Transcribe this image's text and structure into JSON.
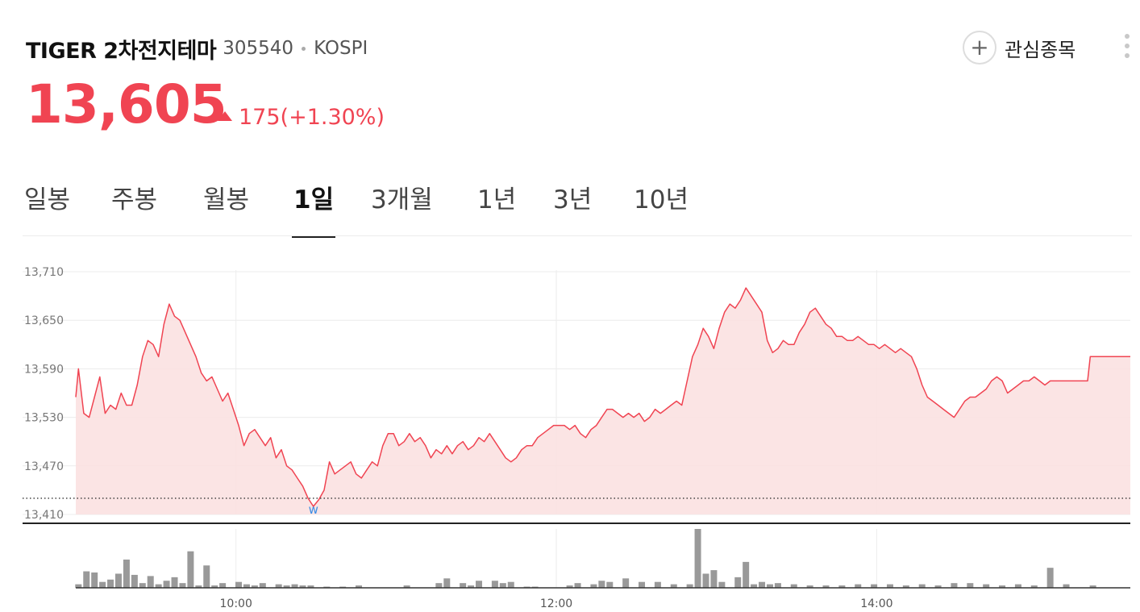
{
  "stock": {
    "name": "TIGER 2차전지테마",
    "code": "305540",
    "market": "KOSPI",
    "price": "13,605",
    "change": "175(+1.30%)",
    "fav_label": "관심종목",
    "fav_symbol": "+"
  },
  "tabs": [
    {
      "label": "일봉"
    },
    {
      "label": "주봉"
    },
    {
      "label": "월봉"
    },
    {
      "label": "1일",
      "active": true
    },
    {
      "label": "3개월"
    },
    {
      "label": "1년"
    },
    {
      "label": "3년"
    },
    {
      "label": "10년"
    }
  ],
  "colors": {
    "up": "#f04452",
    "area": "#fbe1e1",
    "low_marker": "#3a8ee6",
    "volume": "#999999"
  },
  "chart_data": {
    "type": "line",
    "title": "",
    "xlabel": "",
    "ylabel": "",
    "x_range": [
      "09:00",
      "15:35"
    ],
    "ylim": [
      13410,
      13710
    ],
    "y_ticks": [
      13410,
      13470,
      13530,
      13590,
      13650,
      13710
    ],
    "y_tick_labels": [
      "13,410",
      "13,470",
      "13,530",
      "13,590",
      "13,650",
      "13,710"
    ],
    "x_tick_labels": [
      "10:00",
      "12:00",
      "14:00"
    ],
    "reference_price": 13430,
    "grid": true,
    "low_marker": {
      "time": "10:29",
      "label": "w"
    },
    "series": [
      {
        "values": [
          [
            "09:00",
            13555
          ],
          [
            "09:01",
            13590
          ],
          [
            "09:03",
            13535
          ],
          [
            "09:05",
            13530
          ],
          [
            "09:07",
            13555
          ],
          [
            "09:09",
            13580
          ],
          [
            "09:11",
            13535
          ],
          [
            "09:13",
            13545
          ],
          [
            "09:15",
            13540
          ],
          [
            "09:17",
            13560
          ],
          [
            "09:19",
            13545
          ],
          [
            "09:21",
            13545
          ],
          [
            "09:23",
            13570
          ],
          [
            "09:25",
            13605
          ],
          [
            "09:27",
            13625
          ],
          [
            "09:29",
            13620
          ],
          [
            "09:31",
            13605
          ],
          [
            "09:33",
            13645
          ],
          [
            "09:35",
            13670
          ],
          [
            "09:37",
            13655
          ],
          [
            "09:39",
            13650
          ],
          [
            "09:41",
            13635
          ],
          [
            "09:43",
            13620
          ],
          [
            "09:45",
            13605
          ],
          [
            "09:47",
            13585
          ],
          [
            "09:49",
            13575
          ],
          [
            "09:51",
            13580
          ],
          [
            "09:53",
            13565
          ],
          [
            "09:55",
            13550
          ],
          [
            "09:57",
            13560
          ],
          [
            "09:59",
            13540
          ],
          [
            "10:01",
            13520
          ],
          [
            "10:03",
            13495
          ],
          [
            "10:05",
            13510
          ],
          [
            "10:07",
            13515
          ],
          [
            "10:09",
            13505
          ],
          [
            "10:11",
            13495
          ],
          [
            "10:13",
            13505
          ],
          [
            "10:15",
            13480
          ],
          [
            "10:17",
            13490
          ],
          [
            "10:19",
            13470
          ],
          [
            "10:21",
            13465
          ],
          [
            "10:23",
            13455
          ],
          [
            "10:25",
            13445
          ],
          [
            "10:27",
            13430
          ],
          [
            "10:29",
            13420
          ],
          [
            "10:31",
            13428
          ],
          [
            "10:33",
            13440
          ],
          [
            "10:35",
            13475
          ],
          [
            "10:37",
            13460
          ],
          [
            "10:39",
            13465
          ],
          [
            "10:41",
            13470
          ],
          [
            "10:43",
            13475
          ],
          [
            "10:45",
            13460
          ],
          [
            "10:47",
            13455
          ],
          [
            "10:49",
            13465
          ],
          [
            "10:51",
            13475
          ],
          [
            "10:53",
            13470
          ],
          [
            "10:55",
            13495
          ],
          [
            "10:57",
            13510
          ],
          [
            "10:59",
            13510
          ],
          [
            "11:01",
            13495
          ],
          [
            "11:03",
            13500
          ],
          [
            "11:05",
            13510
          ],
          [
            "11:07",
            13500
          ],
          [
            "11:09",
            13505
          ],
          [
            "11:11",
            13495
          ],
          [
            "11:13",
            13480
          ],
          [
            "11:15",
            13490
          ],
          [
            "11:17",
            13485
          ],
          [
            "11:19",
            13495
          ],
          [
            "11:21",
            13485
          ],
          [
            "11:23",
            13495
          ],
          [
            "11:25",
            13500
          ],
          [
            "11:27",
            13490
          ],
          [
            "11:29",
            13495
          ],
          [
            "11:31",
            13505
          ],
          [
            "11:33",
            13500
          ],
          [
            "11:35",
            13510
          ],
          [
            "11:37",
            13500
          ],
          [
            "11:39",
            13490
          ],
          [
            "11:41",
            13480
          ],
          [
            "11:43",
            13475
          ],
          [
            "11:45",
            13480
          ],
          [
            "11:47",
            13490
          ],
          [
            "11:49",
            13495
          ],
          [
            "11:51",
            13495
          ],
          [
            "11:53",
            13505
          ],
          [
            "11:55",
            13510
          ],
          [
            "11:57",
            13515
          ],
          [
            "11:59",
            13520
          ],
          [
            "12:01",
            13520
          ],
          [
            "12:03",
            13520
          ],
          [
            "12:05",
            13515
          ],
          [
            "12:07",
            13520
          ],
          [
            "12:09",
            13510
          ],
          [
            "12:11",
            13505
          ],
          [
            "12:13",
            13515
          ],
          [
            "12:15",
            13520
          ],
          [
            "12:17",
            13530
          ],
          [
            "12:19",
            13540
          ],
          [
            "12:21",
            13540
          ],
          [
            "12:23",
            13535
          ],
          [
            "12:25",
            13530
          ],
          [
            "12:27",
            13535
          ],
          [
            "12:29",
            13530
          ],
          [
            "12:31",
            13535
          ],
          [
            "12:33",
            13525
          ],
          [
            "12:35",
            13530
          ],
          [
            "12:37",
            13540
          ],
          [
            "12:39",
            13535
          ],
          [
            "12:41",
            13540
          ],
          [
            "12:43",
            13545
          ],
          [
            "12:45",
            13550
          ],
          [
            "12:47",
            13545
          ],
          [
            "12:49",
            13575
          ],
          [
            "12:51",
            13605
          ],
          [
            "12:53",
            13620
          ],
          [
            "12:55",
            13640
          ],
          [
            "12:57",
            13630
          ],
          [
            "12:59",
            13615
          ],
          [
            "13:01",
            13640
          ],
          [
            "13:03",
            13660
          ],
          [
            "13:05",
            13670
          ],
          [
            "13:07",
            13665
          ],
          [
            "13:09",
            13675
          ],
          [
            "13:11",
            13690
          ],
          [
            "13:13",
            13680
          ],
          [
            "13:15",
            13670
          ],
          [
            "13:17",
            13660
          ],
          [
            "13:19",
            13625
          ],
          [
            "13:21",
            13610
          ],
          [
            "13:23",
            13615
          ],
          [
            "13:25",
            13625
          ],
          [
            "13:27",
            13620
          ],
          [
            "13:29",
            13620
          ],
          [
            "13:31",
            13635
          ],
          [
            "13:33",
            13645
          ],
          [
            "13:35",
            13660
          ],
          [
            "13:37",
            13665
          ],
          [
            "13:39",
            13655
          ],
          [
            "13:41",
            13645
          ],
          [
            "13:43",
            13640
          ],
          [
            "13:45",
            13630
          ],
          [
            "13:47",
            13630
          ],
          [
            "13:49",
            13625
          ],
          [
            "13:51",
            13625
          ],
          [
            "13:53",
            13630
          ],
          [
            "13:55",
            13625
          ],
          [
            "13:57",
            13620
          ],
          [
            "13:59",
            13620
          ],
          [
            "14:01",
            13615
          ],
          [
            "14:03",
            13620
          ],
          [
            "14:05",
            13615
          ],
          [
            "14:07",
            13610
          ],
          [
            "14:09",
            13615
          ],
          [
            "14:11",
            13610
          ],
          [
            "14:13",
            13605
          ],
          [
            "14:15",
            13590
          ],
          [
            "14:17",
            13570
          ],
          [
            "14:19",
            13555
          ],
          [
            "14:21",
            13550
          ],
          [
            "14:23",
            13545
          ],
          [
            "14:25",
            13540
          ],
          [
            "14:27",
            13535
          ],
          [
            "14:29",
            13530
          ],
          [
            "14:31",
            13540
          ],
          [
            "14:33",
            13550
          ],
          [
            "14:35",
            13555
          ],
          [
            "14:37",
            13555
          ],
          [
            "14:39",
            13560
          ],
          [
            "14:41",
            13565
          ],
          [
            "14:43",
            13575
          ],
          [
            "14:45",
            13580
          ],
          [
            "14:47",
            13575
          ],
          [
            "14:49",
            13560
          ],
          [
            "14:51",
            13565
          ],
          [
            "14:53",
            13570
          ],
          [
            "14:55",
            13575
          ],
          [
            "14:57",
            13575
          ],
          [
            "14:59",
            13580
          ],
          [
            "15:01",
            13575
          ],
          [
            "15:03",
            13570
          ],
          [
            "15:05",
            13575
          ],
          [
            "15:07",
            13575
          ],
          [
            "15:09",
            13575
          ],
          [
            "15:11",
            13575
          ],
          [
            "15:13",
            13575
          ],
          [
            "15:15",
            13575
          ],
          [
            "15:17",
            13575
          ],
          [
            "15:19",
            13575
          ],
          [
            "15:20",
            13605
          ],
          [
            "15:35",
            13605
          ]
        ]
      }
    ],
    "volume": [
      [
        "09:01",
        6
      ],
      [
        "09:04",
        28
      ],
      [
        "09:07",
        26
      ],
      [
        "09:10",
        10
      ],
      [
        "09:13",
        14
      ],
      [
        "09:16",
        24
      ],
      [
        "09:19",
        48
      ],
      [
        "09:22",
        22
      ],
      [
        "09:25",
        8
      ],
      [
        "09:28",
        20
      ],
      [
        "09:31",
        6
      ],
      [
        "09:34",
        12
      ],
      [
        "09:37",
        18
      ],
      [
        "09:40",
        8
      ],
      [
        "09:43",
        62
      ],
      [
        "09:46",
        4
      ],
      [
        "09:49",
        38
      ],
      [
        "09:52",
        4
      ],
      [
        "09:55",
        8
      ],
      [
        "10:01",
        10
      ],
      [
        "10:04",
        6
      ],
      [
        "10:07",
        4
      ],
      [
        "10:10",
        8
      ],
      [
        "10:16",
        6
      ],
      [
        "10:19",
        4
      ],
      [
        "10:22",
        6
      ],
      [
        "10:25",
        4
      ],
      [
        "10:28",
        4
      ],
      [
        "10:34",
        2
      ],
      [
        "10:40",
        2
      ],
      [
        "10:46",
        4
      ],
      [
        "11:04",
        4
      ],
      [
        "11:16",
        8
      ],
      [
        "11:19",
        16
      ],
      [
        "11:25",
        8
      ],
      [
        "11:28",
        4
      ],
      [
        "11:31",
        12
      ],
      [
        "11:37",
        12
      ],
      [
        "11:40",
        8
      ],
      [
        "11:43",
        10
      ],
      [
        "11:49",
        2
      ],
      [
        "11:52",
        2
      ],
      [
        "12:05",
        4
      ],
      [
        "12:08",
        8
      ],
      [
        "12:14",
        6
      ],
      [
        "12:17",
        12
      ],
      [
        "12:20",
        10
      ],
      [
        "12:26",
        16
      ],
      [
        "12:32",
        10
      ],
      [
        "12:38",
        10
      ],
      [
        "12:44",
        6
      ],
      [
        "12:50",
        6
      ],
      [
        "12:53",
        100
      ],
      [
        "12:56",
        24
      ],
      [
        "12:59",
        30
      ],
      [
        "13:02",
        10
      ],
      [
        "13:08",
        18
      ],
      [
        "13:11",
        44
      ],
      [
        "13:14",
        6
      ],
      [
        "13:17",
        10
      ],
      [
        "13:20",
        6
      ],
      [
        "13:23",
        8
      ],
      [
        "13:29",
        6
      ],
      [
        "13:35",
        4
      ],
      [
        "13:41",
        4
      ],
      [
        "13:47",
        4
      ],
      [
        "13:53",
        6
      ],
      [
        "13:59",
        6
      ],
      [
        "14:05",
        6
      ],
      [
        "14:11",
        4
      ],
      [
        "14:17",
        6
      ],
      [
        "14:23",
        4
      ],
      [
        "14:29",
        8
      ],
      [
        "14:35",
        8
      ],
      [
        "14:41",
        6
      ],
      [
        "14:47",
        4
      ],
      [
        "14:53",
        6
      ],
      [
        "14:59",
        4
      ],
      [
        "15:05",
        34
      ],
      [
        "15:11",
        6
      ],
      [
        "15:21",
        4
      ]
    ]
  }
}
